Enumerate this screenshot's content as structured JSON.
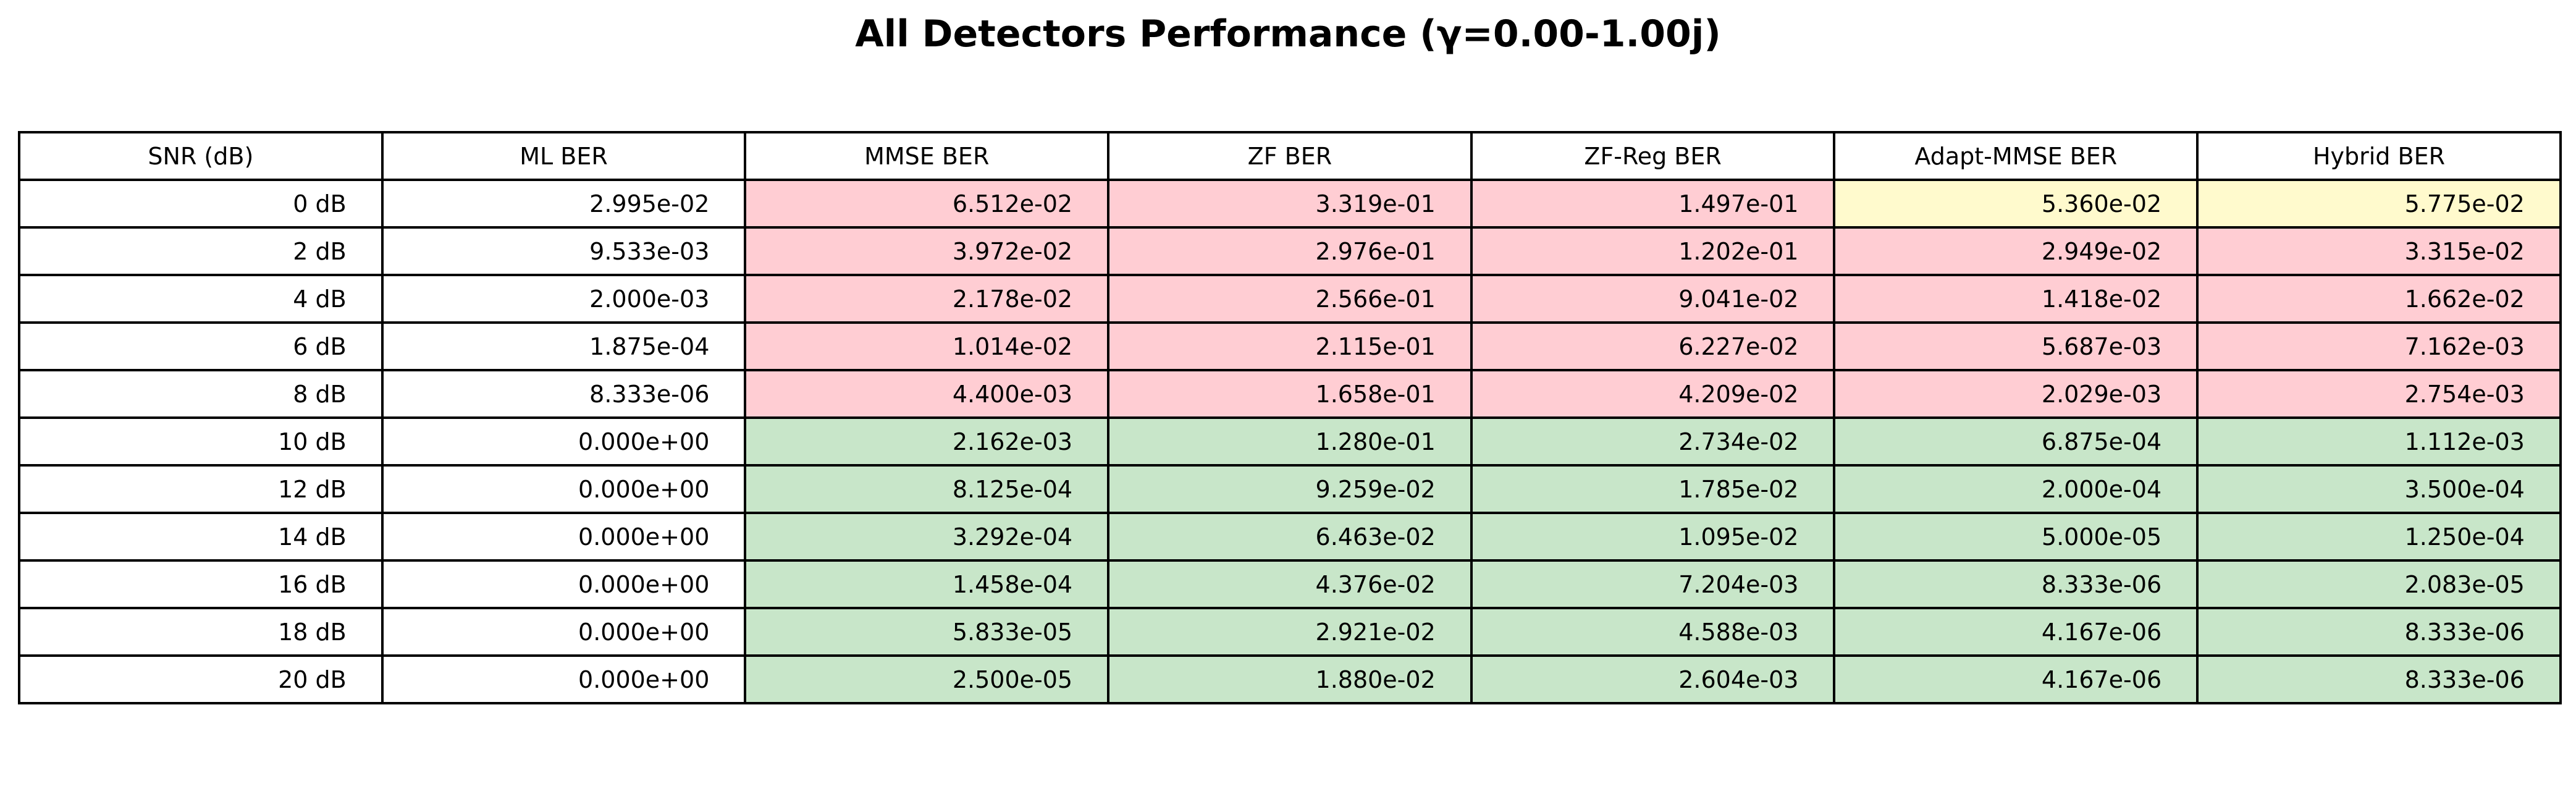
{
  "chart_data": {
    "type": "table",
    "title": "All Detectors Performance (γ=0.00-1.00j)",
    "columns": [
      "SNR (dB)",
      "ML BER",
      "MMSE BER",
      "ZF BER",
      "ZF-Reg BER",
      "Adapt-MMSE BER",
      "Hybrid BER"
    ],
    "rows": [
      [
        "0 dB",
        "2.995e-02",
        "6.512e-02",
        "3.319e-01",
        "1.497e-01",
        "5.360e-02",
        "5.775e-02"
      ],
      [
        "2 dB",
        "9.533e-03",
        "3.972e-02",
        "2.976e-01",
        "1.202e-01",
        "2.949e-02",
        "3.315e-02"
      ],
      [
        "4 dB",
        "2.000e-03",
        "2.178e-02",
        "2.566e-01",
        "9.041e-02",
        "1.418e-02",
        "1.662e-02"
      ],
      [
        "6 dB",
        "1.875e-04",
        "1.014e-02",
        "2.115e-01",
        "6.227e-02",
        "5.687e-03",
        "7.162e-03"
      ],
      [
        "8 dB",
        "8.333e-06",
        "4.400e-03",
        "1.658e-01",
        "4.209e-02",
        "2.029e-03",
        "2.754e-03"
      ],
      [
        "10 dB",
        "0.000e+00",
        "2.162e-03",
        "1.280e-01",
        "2.734e-02",
        "6.875e-04",
        "1.112e-03"
      ],
      [
        "12 dB",
        "0.000e+00",
        "8.125e-04",
        "9.259e-02",
        "1.785e-02",
        "2.000e-04",
        "3.500e-04"
      ],
      [
        "14 dB",
        "0.000e+00",
        "3.292e-04",
        "6.463e-02",
        "1.095e-02",
        "5.000e-05",
        "1.250e-04"
      ],
      [
        "16 dB",
        "0.000e+00",
        "1.458e-04",
        "4.376e-02",
        "7.204e-03",
        "8.333e-06",
        "2.083e-05"
      ],
      [
        "18 dB",
        "0.000e+00",
        "5.833e-05",
        "2.921e-02",
        "4.588e-03",
        "4.167e-06",
        "8.333e-06"
      ],
      [
        "20 dB",
        "0.000e+00",
        "2.500e-05",
        "1.880e-02",
        "2.604e-03",
        "4.167e-06",
        "8.333e-06"
      ]
    ],
    "cell_colors": [
      [
        "white",
        "white",
        "red",
        "red",
        "red",
        "yellow",
        "yellow"
      ],
      [
        "white",
        "white",
        "red",
        "red",
        "red",
        "red",
        "red"
      ],
      [
        "white",
        "white",
        "red",
        "red",
        "red",
        "red",
        "red"
      ],
      [
        "white",
        "white",
        "red",
        "red",
        "red",
        "red",
        "red"
      ],
      [
        "white",
        "white",
        "red",
        "red",
        "red",
        "red",
        "red"
      ],
      [
        "white",
        "white",
        "green",
        "green",
        "green",
        "green",
        "green"
      ],
      [
        "white",
        "white",
        "green",
        "green",
        "green",
        "green",
        "green"
      ],
      [
        "white",
        "white",
        "green",
        "green",
        "green",
        "green",
        "green"
      ],
      [
        "white",
        "white",
        "green",
        "green",
        "green",
        "green",
        "green"
      ],
      [
        "white",
        "white",
        "green",
        "green",
        "green",
        "green",
        "green"
      ],
      [
        "white",
        "white",
        "green",
        "green",
        "green",
        "green",
        "green"
      ]
    ],
    "palette": {
      "white": "#ffffff",
      "red": "#ffcdd3",
      "yellow": "#fffacd",
      "green": "#c8e6c9",
      "border": "#000000"
    }
  }
}
